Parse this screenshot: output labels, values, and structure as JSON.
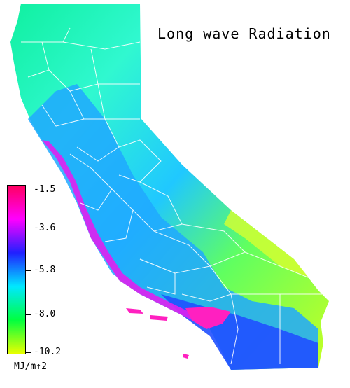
{
  "title": "Long wave Radiation",
  "legend": {
    "ticks": [
      "-1.5",
      "-3.6",
      "-5.8",
      "-8.0",
      "-10.2"
    ],
    "units": "MJ/m↑2",
    "colors": [
      "#ff0060",
      "#ff00ff",
      "#2020ff",
      "#00e8ff",
      "#00ff40",
      "#e8ff00"
    ]
  },
  "colors": {
    "background": "#ffffff",
    "boundaries": "#ffffff",
    "coast_high": "#ff1070",
    "inland_low": "#c8ff20"
  }
}
